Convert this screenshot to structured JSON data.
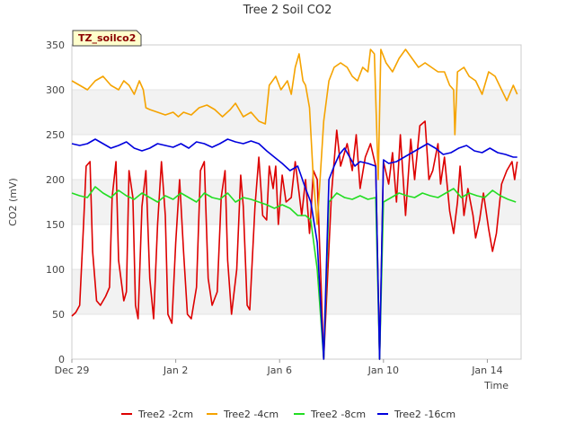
{
  "chart_data": {
    "type": "line",
    "title": "Tree 2 Soil CO2",
    "site_label": "TZ_soilco2",
    "xlabel": "Time",
    "ylabel": "CO2 (mV)",
    "xlim": [
      0,
      17.3
    ],
    "ylim": [
      0,
      350
    ],
    "x_unit": "days from Dec 29",
    "x_ticks": [
      {
        "x": 0,
        "label": "Dec 29"
      },
      {
        "x": 4,
        "label": "Jan 2"
      },
      {
        "x": 8,
        "label": "Jan 6"
      },
      {
        "x": 12,
        "label": "Jan 10"
      },
      {
        "x": 16,
        "label": "Jan 14"
      }
    ],
    "y_ticks": [
      0,
      50,
      100,
      150,
      200,
      250,
      300,
      350
    ],
    "grid": "horizontal bands",
    "legend_position": "bottom",
    "series": [
      {
        "name": "Tree2 -2cm",
        "color": "#dd0000",
        "points": [
          [
            0,
            48
          ],
          [
            0.15,
            52
          ],
          [
            0.3,
            60
          ],
          [
            0.45,
            150
          ],
          [
            0.55,
            215
          ],
          [
            0.7,
            220
          ],
          [
            0.8,
            120
          ],
          [
            0.95,
            65
          ],
          [
            1.1,
            60
          ],
          [
            1.3,
            70
          ],
          [
            1.45,
            80
          ],
          [
            1.55,
            180
          ],
          [
            1.7,
            220
          ],
          [
            1.8,
            110
          ],
          [
            2.0,
            65
          ],
          [
            2.1,
            75
          ],
          [
            2.2,
            210
          ],
          [
            2.35,
            180
          ],
          [
            2.45,
            60
          ],
          [
            2.55,
            45
          ],
          [
            2.7,
            170
          ],
          [
            2.85,
            210
          ],
          [
            3.0,
            90
          ],
          [
            3.15,
            45
          ],
          [
            3.3,
            150
          ],
          [
            3.45,
            220
          ],
          [
            3.6,
            160
          ],
          [
            3.7,
            50
          ],
          [
            3.85,
            40
          ],
          [
            4.0,
            130
          ],
          [
            4.15,
            200
          ],
          [
            4.3,
            120
          ],
          [
            4.45,
            50
          ],
          [
            4.6,
            45
          ],
          [
            4.8,
            80
          ],
          [
            4.95,
            210
          ],
          [
            5.1,
            220
          ],
          [
            5.25,
            90
          ],
          [
            5.4,
            60
          ],
          [
            5.6,
            75
          ],
          [
            5.75,
            180
          ],
          [
            5.9,
            210
          ],
          [
            6.0,
            110
          ],
          [
            6.15,
            50
          ],
          [
            6.35,
            100
          ],
          [
            6.5,
            205
          ],
          [
            6.6,
            170
          ],
          [
            6.75,
            60
          ],
          [
            6.85,
            55
          ],
          [
            7.05,
            170
          ],
          [
            7.2,
            225
          ],
          [
            7.35,
            160
          ],
          [
            7.5,
            155
          ],
          [
            7.6,
            215
          ],
          [
            7.75,
            190
          ],
          [
            7.85,
            215
          ],
          [
            7.95,
            150
          ],
          [
            8.1,
            205
          ],
          [
            8.25,
            175
          ],
          [
            8.45,
            180
          ],
          [
            8.6,
            220
          ],
          [
            8.75,
            185
          ],
          [
            8.85,
            160
          ],
          [
            9.0,
            200
          ],
          [
            9.15,
            140
          ],
          [
            9.2,
            160
          ],
          [
            9.3,
            210
          ],
          [
            9.45,
            200
          ],
          [
            9.7,
            0
          ],
          [
            10.0,
            185
          ],
          [
            10.2,
            255
          ],
          [
            10.35,
            215
          ],
          [
            10.6,
            240
          ],
          [
            10.8,
            210
          ],
          [
            10.95,
            250
          ],
          [
            11.1,
            190
          ],
          [
            11.3,
            225
          ],
          [
            11.5,
            240
          ],
          [
            11.7,
            215
          ],
          [
            11.85,
            0
          ],
          [
            12.0,
            220
          ],
          [
            12.2,
            195
          ],
          [
            12.35,
            230
          ],
          [
            12.5,
            175
          ],
          [
            12.65,
            250
          ],
          [
            12.85,
            160
          ],
          [
            13.05,
            245
          ],
          [
            13.2,
            200
          ],
          [
            13.4,
            260
          ],
          [
            13.6,
            265
          ],
          [
            13.75,
            200
          ],
          [
            13.9,
            210
          ],
          [
            14.1,
            240
          ],
          [
            14.2,
            195
          ],
          [
            14.35,
            225
          ],
          [
            14.55,
            165
          ],
          [
            14.7,
            140
          ],
          [
            14.85,
            175
          ],
          [
            14.95,
            215
          ],
          [
            15.1,
            160
          ],
          [
            15.25,
            190
          ],
          [
            15.45,
            160
          ],
          [
            15.55,
            135
          ],
          [
            15.7,
            155
          ],
          [
            15.85,
            185
          ],
          [
            16.05,
            145
          ],
          [
            16.2,
            120
          ],
          [
            16.35,
            140
          ],
          [
            16.55,
            195
          ],
          [
            16.75,
            210
          ],
          [
            16.95,
            220
          ],
          [
            17.05,
            200
          ],
          [
            17.15,
            220
          ]
        ]
      },
      {
        "name": "Tree2 -4cm",
        "color": "#f5a300",
        "points": [
          [
            0,
            310
          ],
          [
            0.3,
            305
          ],
          [
            0.6,
            300
          ],
          [
            0.9,
            310
          ],
          [
            1.2,
            315
          ],
          [
            1.5,
            305
          ],
          [
            1.8,
            300
          ],
          [
            2.0,
            310
          ],
          [
            2.2,
            305
          ],
          [
            2.4,
            295
          ],
          [
            2.6,
            310
          ],
          [
            2.75,
            300
          ],
          [
            2.85,
            280
          ],
          [
            3.0,
            278
          ],
          [
            3.3,
            275
          ],
          [
            3.6,
            272
          ],
          [
            3.9,
            275
          ],
          [
            4.1,
            270
          ],
          [
            4.3,
            275
          ],
          [
            4.6,
            272
          ],
          [
            4.9,
            280
          ],
          [
            5.2,
            283
          ],
          [
            5.5,
            278
          ],
          [
            5.8,
            270
          ],
          [
            6.1,
            278
          ],
          [
            6.3,
            285
          ],
          [
            6.6,
            270
          ],
          [
            6.9,
            275
          ],
          [
            7.2,
            265
          ],
          [
            7.45,
            262
          ],
          [
            7.6,
            305
          ],
          [
            7.85,
            315
          ],
          [
            8.05,
            300
          ],
          [
            8.3,
            310
          ],
          [
            8.45,
            295
          ],
          [
            8.6,
            325
          ],
          [
            8.75,
            340
          ],
          [
            8.9,
            310
          ],
          [
            9.0,
            305
          ],
          [
            9.15,
            280
          ],
          [
            9.3,
            200
          ],
          [
            9.45,
            150
          ],
          [
            9.7,
            265
          ],
          [
            9.9,
            310
          ],
          [
            10.1,
            325
          ],
          [
            10.35,
            330
          ],
          [
            10.6,
            325
          ],
          [
            10.8,
            315
          ],
          [
            11.0,
            310
          ],
          [
            11.2,
            325
          ],
          [
            11.4,
            320
          ],
          [
            11.5,
            345
          ],
          [
            11.65,
            340
          ],
          [
            11.8,
            200
          ],
          [
            11.9,
            345
          ],
          [
            12.1,
            330
          ],
          [
            12.35,
            320
          ],
          [
            12.6,
            335
          ],
          [
            12.85,
            345
          ],
          [
            13.1,
            335
          ],
          [
            13.35,
            325
          ],
          [
            13.6,
            330
          ],
          [
            13.85,
            325
          ],
          [
            14.1,
            320
          ],
          [
            14.35,
            320
          ],
          [
            14.55,
            305
          ],
          [
            14.7,
            300
          ],
          [
            14.75,
            250
          ],
          [
            14.85,
            320
          ],
          [
            15.1,
            325
          ],
          [
            15.3,
            315
          ],
          [
            15.55,
            310
          ],
          [
            15.8,
            295
          ],
          [
            16.05,
            320
          ],
          [
            16.3,
            315
          ],
          [
            16.55,
            300
          ],
          [
            16.75,
            288
          ],
          [
            17.0,
            305
          ],
          [
            17.15,
            295
          ]
        ]
      },
      {
        "name": "Tree2 -8cm",
        "color": "#22dd22",
        "points": [
          [
            0,
            185
          ],
          [
            0.3,
            182
          ],
          [
            0.6,
            180
          ],
          [
            0.9,
            192
          ],
          [
            1.2,
            185
          ],
          [
            1.5,
            180
          ],
          [
            1.8,
            188
          ],
          [
            2.1,
            182
          ],
          [
            2.4,
            178
          ],
          [
            2.7,
            185
          ],
          [
            3.0,
            180
          ],
          [
            3.3,
            175
          ],
          [
            3.6,
            182
          ],
          [
            3.9,
            178
          ],
          [
            4.2,
            185
          ],
          [
            4.5,
            180
          ],
          [
            4.8,
            175
          ],
          [
            5.1,
            185
          ],
          [
            5.4,
            180
          ],
          [
            5.7,
            178
          ],
          [
            6.0,
            185
          ],
          [
            6.3,
            175
          ],
          [
            6.6,
            180
          ],
          [
            6.9,
            178
          ],
          [
            7.2,
            175
          ],
          [
            7.5,
            172
          ],
          [
            7.8,
            168
          ],
          [
            8.1,
            172
          ],
          [
            8.4,
            168
          ],
          [
            8.7,
            160
          ],
          [
            9.0,
            160
          ],
          [
            9.2,
            155
          ],
          [
            9.45,
            100
          ],
          [
            9.7,
            0
          ],
          [
            9.9,
            175
          ],
          [
            10.2,
            185
          ],
          [
            10.5,
            180
          ],
          [
            10.8,
            178
          ],
          [
            11.1,
            182
          ],
          [
            11.4,
            178
          ],
          [
            11.7,
            180
          ],
          [
            11.85,
            0
          ],
          [
            12.0,
            175
          ],
          [
            12.3,
            180
          ],
          [
            12.6,
            185
          ],
          [
            12.9,
            182
          ],
          [
            13.2,
            180
          ],
          [
            13.5,
            185
          ],
          [
            13.8,
            182
          ],
          [
            14.1,
            180
          ],
          [
            14.4,
            185
          ],
          [
            14.7,
            190
          ],
          [
            15.0,
            180
          ],
          [
            15.3,
            185
          ],
          [
            15.6,
            182
          ],
          [
            15.9,
            180
          ],
          [
            16.2,
            188
          ],
          [
            16.5,
            182
          ],
          [
            16.8,
            178
          ],
          [
            17.1,
            175
          ]
        ]
      },
      {
        "name": "Tree2 -16cm",
        "color": "#0000dd",
        "points": [
          [
            0,
            240
          ],
          [
            0.3,
            238
          ],
          [
            0.6,
            240
          ],
          [
            0.9,
            245
          ],
          [
            1.2,
            240
          ],
          [
            1.5,
            235
          ],
          [
            1.8,
            238
          ],
          [
            2.1,
            242
          ],
          [
            2.4,
            235
          ],
          [
            2.7,
            232
          ],
          [
            3.0,
            235
          ],
          [
            3.3,
            240
          ],
          [
            3.6,
            238
          ],
          [
            3.9,
            236
          ],
          [
            4.2,
            240
          ],
          [
            4.5,
            235
          ],
          [
            4.8,
            242
          ],
          [
            5.1,
            240
          ],
          [
            5.4,
            236
          ],
          [
            5.7,
            240
          ],
          [
            6.0,
            245
          ],
          [
            6.3,
            242
          ],
          [
            6.6,
            240
          ],
          [
            6.9,
            243
          ],
          [
            7.2,
            240
          ],
          [
            7.5,
            232
          ],
          [
            7.8,
            225
          ],
          [
            8.1,
            218
          ],
          [
            8.4,
            210
          ],
          [
            8.7,
            215
          ],
          [
            9.0,
            190
          ],
          [
            9.2,
            175
          ],
          [
            9.45,
            130
          ],
          [
            9.7,
            0
          ],
          [
            9.9,
            200
          ],
          [
            10.1,
            215
          ],
          [
            10.3,
            228
          ],
          [
            10.5,
            235
          ],
          [
            10.7,
            225
          ],
          [
            10.9,
            215
          ],
          [
            11.1,
            220
          ],
          [
            11.4,
            218
          ],
          [
            11.7,
            215
          ],
          [
            11.85,
            0
          ],
          [
            12.0,
            222
          ],
          [
            12.2,
            218
          ],
          [
            12.5,
            220
          ],
          [
            12.8,
            225
          ],
          [
            13.1,
            230
          ],
          [
            13.4,
            235
          ],
          [
            13.7,
            240
          ],
          [
            14.0,
            235
          ],
          [
            14.3,
            228
          ],
          [
            14.6,
            230
          ],
          [
            14.9,
            235
          ],
          [
            15.2,
            238
          ],
          [
            15.5,
            232
          ],
          [
            15.8,
            230
          ],
          [
            16.1,
            235
          ],
          [
            16.4,
            230
          ],
          [
            16.7,
            228
          ],
          [
            17.0,
            225
          ],
          [
            17.15,
            225
          ]
        ]
      }
    ]
  }
}
